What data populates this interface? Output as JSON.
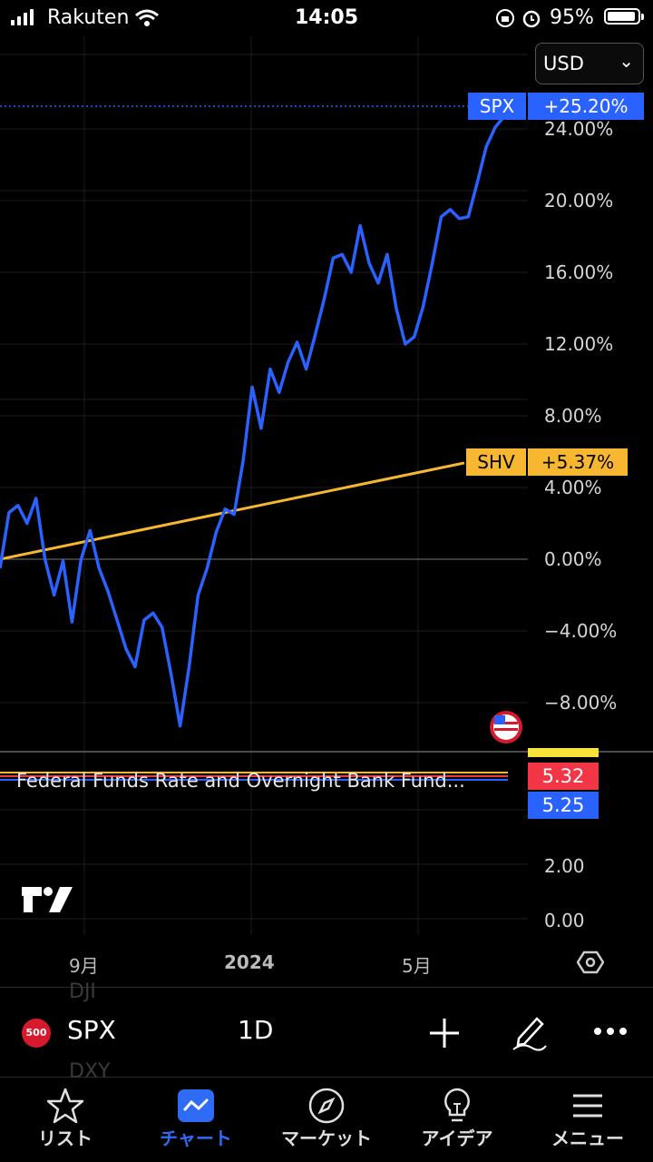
{
  "status_bar": {
    "carrier": "Rakuten",
    "time": "14:05",
    "battery": "95%"
  },
  "currency_selector": {
    "value": "USD"
  },
  "y_axis_labels": [
    "24.00%",
    "20.00%",
    "16.00%",
    "12.00%",
    "8.00%",
    "4.00%",
    "0.00%",
    "−4.00%",
    "−8.00%"
  ],
  "lower_pane_labels": [
    "2.00",
    "0.00"
  ],
  "x_axis_labels": [
    "9月",
    "2024",
    "5月"
  ],
  "series_tags": {
    "spx": {
      "name": "SPX",
      "value": "+25.20%"
    },
    "shv": {
      "name": "SHV",
      "value": "+5.37%"
    }
  },
  "indicator": {
    "title": "Federal Funds Rate and Overnight Bank Fund...",
    "value_red": "5.32",
    "value_blue": "5.25"
  },
  "colors": {
    "spx": "#2962ff",
    "shv": "#f7b731",
    "red": "#f23645",
    "accent": "#2f6cf6"
  },
  "toolbar": {
    "symbol_badge": "500",
    "symbol": "SPX",
    "interval": "1D",
    "ghost_above": "DJI",
    "ghost_below": "DXY"
  },
  "nav": [
    {
      "label": "リスト",
      "icon": "star-icon"
    },
    {
      "label": "チャート",
      "icon": "chart-icon",
      "active": true
    },
    {
      "label": "マーケット",
      "icon": "compass-icon"
    },
    {
      "label": "アイデア",
      "icon": "lightbulb-icon"
    },
    {
      "label": "メニュー",
      "icon": "menu-icon"
    }
  ],
  "chart_data": {
    "type": "line",
    "x_ticks": [
      "9月",
      "2024",
      "5月"
    ],
    "ylim": [
      -10,
      27
    ],
    "y_unit": "%",
    "series": [
      {
        "name": "SPX",
        "last": 25.2,
        "values": [
          -0.5,
          2,
          3.5,
          2,
          2.8,
          0.5,
          -2,
          -0.7,
          -3,
          0,
          1,
          0,
          -1.8,
          -4,
          -4.5,
          -6,
          -4,
          -2.5,
          -3.8,
          -7,
          -8.8,
          -6,
          -2.6,
          0,
          1.5,
          2.2,
          3,
          5.5,
          9,
          7.8,
          10.6,
          8.7,
          11.5,
          12.1,
          10,
          13,
          14.5,
          16.2,
          17.5,
          16,
          18,
          17,
          15.4,
          16.4,
          14.5,
          12,
          11.8,
          14.6,
          16.5,
          18.5,
          20,
          19,
          18.5,
          21.5,
          23,
          23.5,
          25.2
        ]
      },
      {
        "name": "SHV",
        "last": 5.37,
        "start": 0,
        "end": 5.37
      }
    ],
    "zero_line": 0
  }
}
